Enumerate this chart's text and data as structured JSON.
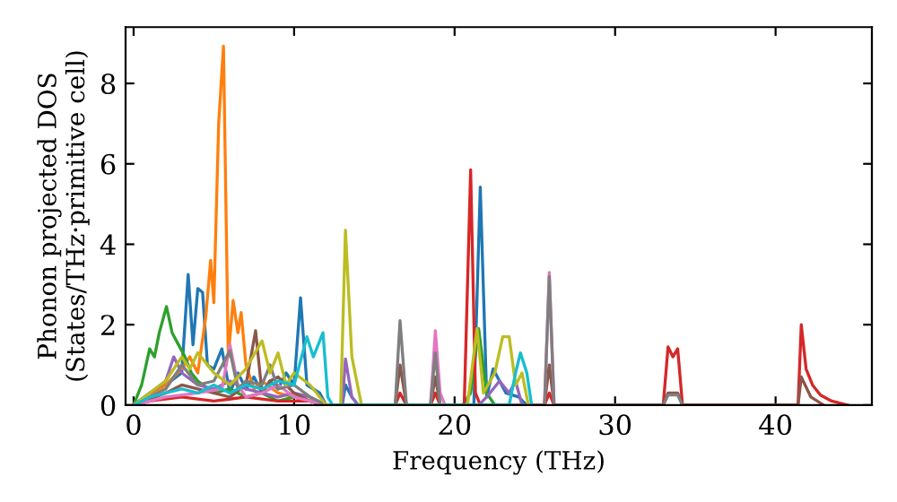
{
  "chart_data": {
    "type": "line",
    "xlabel": "Frequency (THz)",
    "ylabel": "Phonon projected DOS\n(States/THz·primitive cell)",
    "xlim": [
      -0.5,
      46
    ],
    "xticks": [
      0,
      10,
      20,
      30,
      40
    ],
    "ylim": [
      0,
      9.4
    ],
    "yticks": [
      0,
      2,
      4,
      6,
      8
    ],
    "grid": false,
    "legend": false,
    "series": [
      {
        "color": "#1f77b4",
        "x": [
          0,
          1,
          2,
          3,
          3.4,
          3.7,
          4,
          4.3,
          4.6,
          5,
          5.5,
          6,
          6.5,
          7,
          7.5,
          8,
          8.5,
          9,
          9.5,
          10,
          10.4,
          10.8,
          11.2,
          11.6,
          12,
          13,
          13.2,
          13.6,
          14,
          21.2,
          21.6,
          22,
          22.4,
          22.8,
          23.2,
          24,
          24.5
        ],
        "values": [
          0,
          0.3,
          0.5,
          0.8,
          3.25,
          1.5,
          2.9,
          2.8,
          1.0,
          0.9,
          1.4,
          0.3,
          0.8,
          0.4,
          0.7,
          0.3,
          0.6,
          0.4,
          0.8,
          0.5,
          2.67,
          0.5,
          0.4,
          0.3,
          0,
          0,
          0.5,
          0.2,
          0,
          0,
          5.42,
          0.2,
          0.9,
          0.6,
          0.3,
          0.2,
          0
        ]
      },
      {
        "color": "#ff7f0e",
        "x": [
          0,
          1,
          2,
          3,
          3.5,
          4,
          4.5,
          4.8,
          5.0,
          5.3,
          5.6,
          5.9,
          6.2,
          6.5,
          6.7,
          7,
          7.5,
          8,
          9,
          10,
          11
        ],
        "values": [
          0,
          0.2,
          0.5,
          0.9,
          1.2,
          0.8,
          2.2,
          3.6,
          2.55,
          7.0,
          8.93,
          1.2,
          2.6,
          1.8,
          2.3,
          1.0,
          0.4,
          0.6,
          0.3,
          0.2,
          0.1
        ]
      },
      {
        "color": "#2ca02c",
        "x": [
          0,
          0.5,
          1,
          1.3,
          1.6,
          2.05,
          2.4,
          2.8,
          3.2,
          3.6,
          4,
          5,
          6,
          7,
          8,
          9,
          10,
          11,
          12,
          20.5,
          21,
          21.5,
          22,
          22.5
        ],
        "values": [
          0,
          0.5,
          1.4,
          1.2,
          1.8,
          2.45,
          1.8,
          1.5,
          1.2,
          0.8,
          0.6,
          0.3,
          0.4,
          0.2,
          0.3,
          0.1,
          0.2,
          0.1,
          0,
          0,
          0.3,
          1.9,
          0.3,
          0
        ]
      },
      {
        "color": "#d62728",
        "x": [
          0,
          1,
          3,
          5,
          7,
          9,
          11,
          12,
          16.3,
          16.6,
          17,
          18.5,
          18.8,
          19.1,
          20.6,
          21.0,
          21.3,
          21.6,
          25.6,
          25.9,
          26.2,
          33.0,
          33.3,
          33.6,
          33.9,
          34.2,
          41.4,
          41.6,
          41.9,
          42.3,
          42.8,
          43.5,
          44.5
        ],
        "values": [
          0,
          0.1,
          0.2,
          0.1,
          0.2,
          0.1,
          0.1,
          0,
          0,
          0.3,
          0,
          0,
          0.3,
          0,
          0,
          5.85,
          0.3,
          0,
          0,
          0.3,
          0,
          0,
          1.45,
          1.2,
          1.4,
          0,
          0,
          2.0,
          0.9,
          0.5,
          0.25,
          0.1,
          0
        ]
      },
      {
        "color": "#9467bd",
        "x": [
          0,
          1,
          2,
          2.5,
          3,
          4,
          5,
          6,
          7,
          8,
          9,
          10,
          11,
          12,
          13,
          13.2,
          13.6,
          14,
          21.5,
          22,
          22.8,
          23.4,
          23.8,
          24.2
        ],
        "values": [
          0,
          0.3,
          0.6,
          1.2,
          0.8,
          0.5,
          0.4,
          0.6,
          0.4,
          0.3,
          0.2,
          0.3,
          0.2,
          0,
          0,
          1.15,
          0.2,
          0,
          0,
          0.2,
          0.6,
          0.3,
          0.6,
          0
        ]
      },
      {
        "color": "#8c564b",
        "x": [
          0,
          2,
          3,
          4,
          5,
          6,
          7,
          7.6,
          8,
          8.5,
          9,
          10,
          11,
          12,
          16.3,
          16.6,
          17,
          18.5,
          18.8,
          19.1,
          25.6,
          25.9,
          26.2,
          33.0,
          33.3,
          33.9,
          34.2,
          41.4,
          41.6,
          42.2,
          43
        ],
        "values": [
          0,
          0.3,
          0.5,
          0.4,
          0.3,
          0.2,
          0.5,
          1.85,
          0.3,
          0.6,
          0.7,
          0.3,
          0.1,
          0,
          0,
          1.0,
          0,
          0,
          0.7,
          0,
          0,
          1.0,
          0,
          0,
          0.3,
          0.3,
          0,
          0,
          0.7,
          0.2,
          0
        ]
      },
      {
        "color": "#e377c2",
        "x": [
          0,
          2,
          4,
          5.5,
          6,
          6.5,
          7,
          8,
          9,
          10,
          11,
          12,
          18.5,
          18.8,
          19.1,
          19.4,
          25.6,
          25.9,
          26.2
        ],
        "values": [
          0,
          0.2,
          0.3,
          0.4,
          1.5,
          0.5,
          0.2,
          0.3,
          0.5,
          0.2,
          0.1,
          0,
          0,
          1.85,
          0.3,
          0,
          0,
          3.3,
          0
        ]
      },
      {
        "color": "#7f7f7f",
        "x": [
          0,
          2,
          3,
          4,
          5,
          6,
          6.5,
          7,
          8,
          8.5,
          9,
          10,
          11,
          12,
          16.3,
          16.6,
          17,
          18.5,
          18.8,
          19.1,
          25.6,
          25.9,
          26.2,
          33.0,
          33.3,
          33.9,
          34.2
        ],
        "values": [
          0,
          0.4,
          1.0,
          0.5,
          0.6,
          1.35,
          0.4,
          0.6,
          0.5,
          1.0,
          0.4,
          0.5,
          0.2,
          0,
          0,
          2.1,
          0,
          0,
          1.3,
          0,
          0,
          3.2,
          0,
          0,
          0.25,
          0.25,
          0
        ]
      },
      {
        "color": "#bcbd22",
        "x": [
          0,
          1,
          2,
          3,
          3.5,
          4,
          5,
          6,
          7,
          8,
          8.5,
          9,
          9.5,
          10,
          11,
          12,
          12.9,
          13.2,
          13.6,
          14.2,
          20.8,
          21.4,
          21.8,
          22.5,
          23.0,
          23.4,
          23.8,
          24.2,
          24.6
        ],
        "values": [
          0,
          0.3,
          0.6,
          1.2,
          0.9,
          1.3,
          0.8,
          0.5,
          0.9,
          1.6,
          0.8,
          1.3,
          0.5,
          0.8,
          0.5,
          0,
          0,
          4.35,
          1.2,
          0,
          0,
          1.9,
          0.3,
          0.8,
          1.7,
          1.7,
          0.5,
          0.8,
          0
        ]
      },
      {
        "color": "#17becf",
        "x": [
          0,
          1,
          2,
          3,
          4,
          5,
          6,
          7,
          8,
          9,
          10,
          10.8,
          11.2,
          11.8,
          12.1,
          12.4,
          23.4,
          23.8,
          24.1,
          24.5,
          24.8
        ],
        "values": [
          0,
          0.2,
          0.3,
          0.4,
          0.3,
          0.5,
          0.3,
          0.5,
          0.4,
          0.6,
          0.5,
          1.7,
          1.2,
          1.8,
          0.2,
          0,
          0,
          0.8,
          1.3,
          0.8,
          0
        ]
      }
    ]
  }
}
